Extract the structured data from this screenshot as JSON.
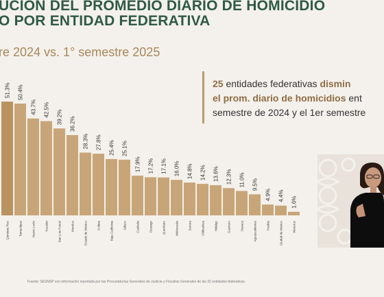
{
  "header": {
    "title_line1": "UCIÓN DEL PROMEDIO DIARIO DE HOMICIDIO",
    "title_line2": "O POR ENTIDAD FEDERATIVA",
    "subtitle": "re 2024 vs. 1° semestre 2025"
  },
  "callout": {
    "l1_num": "25",
    "l1_text": " entidades federativas ",
    "l1_hl": "dismin",
    "l2_hl": "el prom. diario de homicidios",
    "l2_text": " ent",
    "l3_text": "semestre de 2024 y el 1er semestre"
  },
  "source": "Fuente: SESNSP con información reportada por las Procuradurías Generales de Justicia y Fiscalías Generales de las 32 entidades federativas.",
  "colors": {
    "bar": "#c8a578",
    "bar_dark": "#b8925f",
    "title": "#2f5a45",
    "accent": "#a8875a"
  },
  "chart_data": {
    "type": "bar",
    "categories": [
      "Quintana Roo",
      "Tamaulipas",
      "Nuevo León",
      "Yucatán",
      "San Luis Potosí",
      "Morelos",
      "Estado de México",
      "Colima",
      "Baja California",
      "Jalisco",
      "Coahuila",
      "Durango",
      "Querétaro",
      "Michoacán",
      "Sonora",
      "Chihuahua",
      "Hidalgo",
      "Guerrero",
      "Oaxaca",
      "Aguascalientes",
      "Puebla",
      "Ciudad de México",
      "Veracruz"
    ],
    "values": [
      51.3,
      50.4,
      43.7,
      42.5,
      39.2,
      36.2,
      28.3,
      27.8,
      25.4,
      25.1,
      17.9,
      17.2,
      17.1,
      16.0,
      14.8,
      14.2,
      13.6,
      12.3,
      11.0,
      9.5,
      4.9,
      4.4,
      1.6
    ],
    "labels": [
      "51.3%",
      "50.4%",
      "43.7%",
      "42.5%",
      "39.2%",
      "36.2%",
      "28.3%",
      "27.8%",
      "25.4%",
      "25.1%",
      "17.9%",
      "17.2%",
      "17.1%",
      "16.0%",
      "14.8%",
      "14.2%",
      "13.6%",
      "12.3%",
      "11.0%",
      "9.5%",
      "4.9%",
      "4.4%",
      "1.6%"
    ],
    "ylim": [
      0,
      60
    ],
    "grid": false,
    "legend": "none"
  }
}
